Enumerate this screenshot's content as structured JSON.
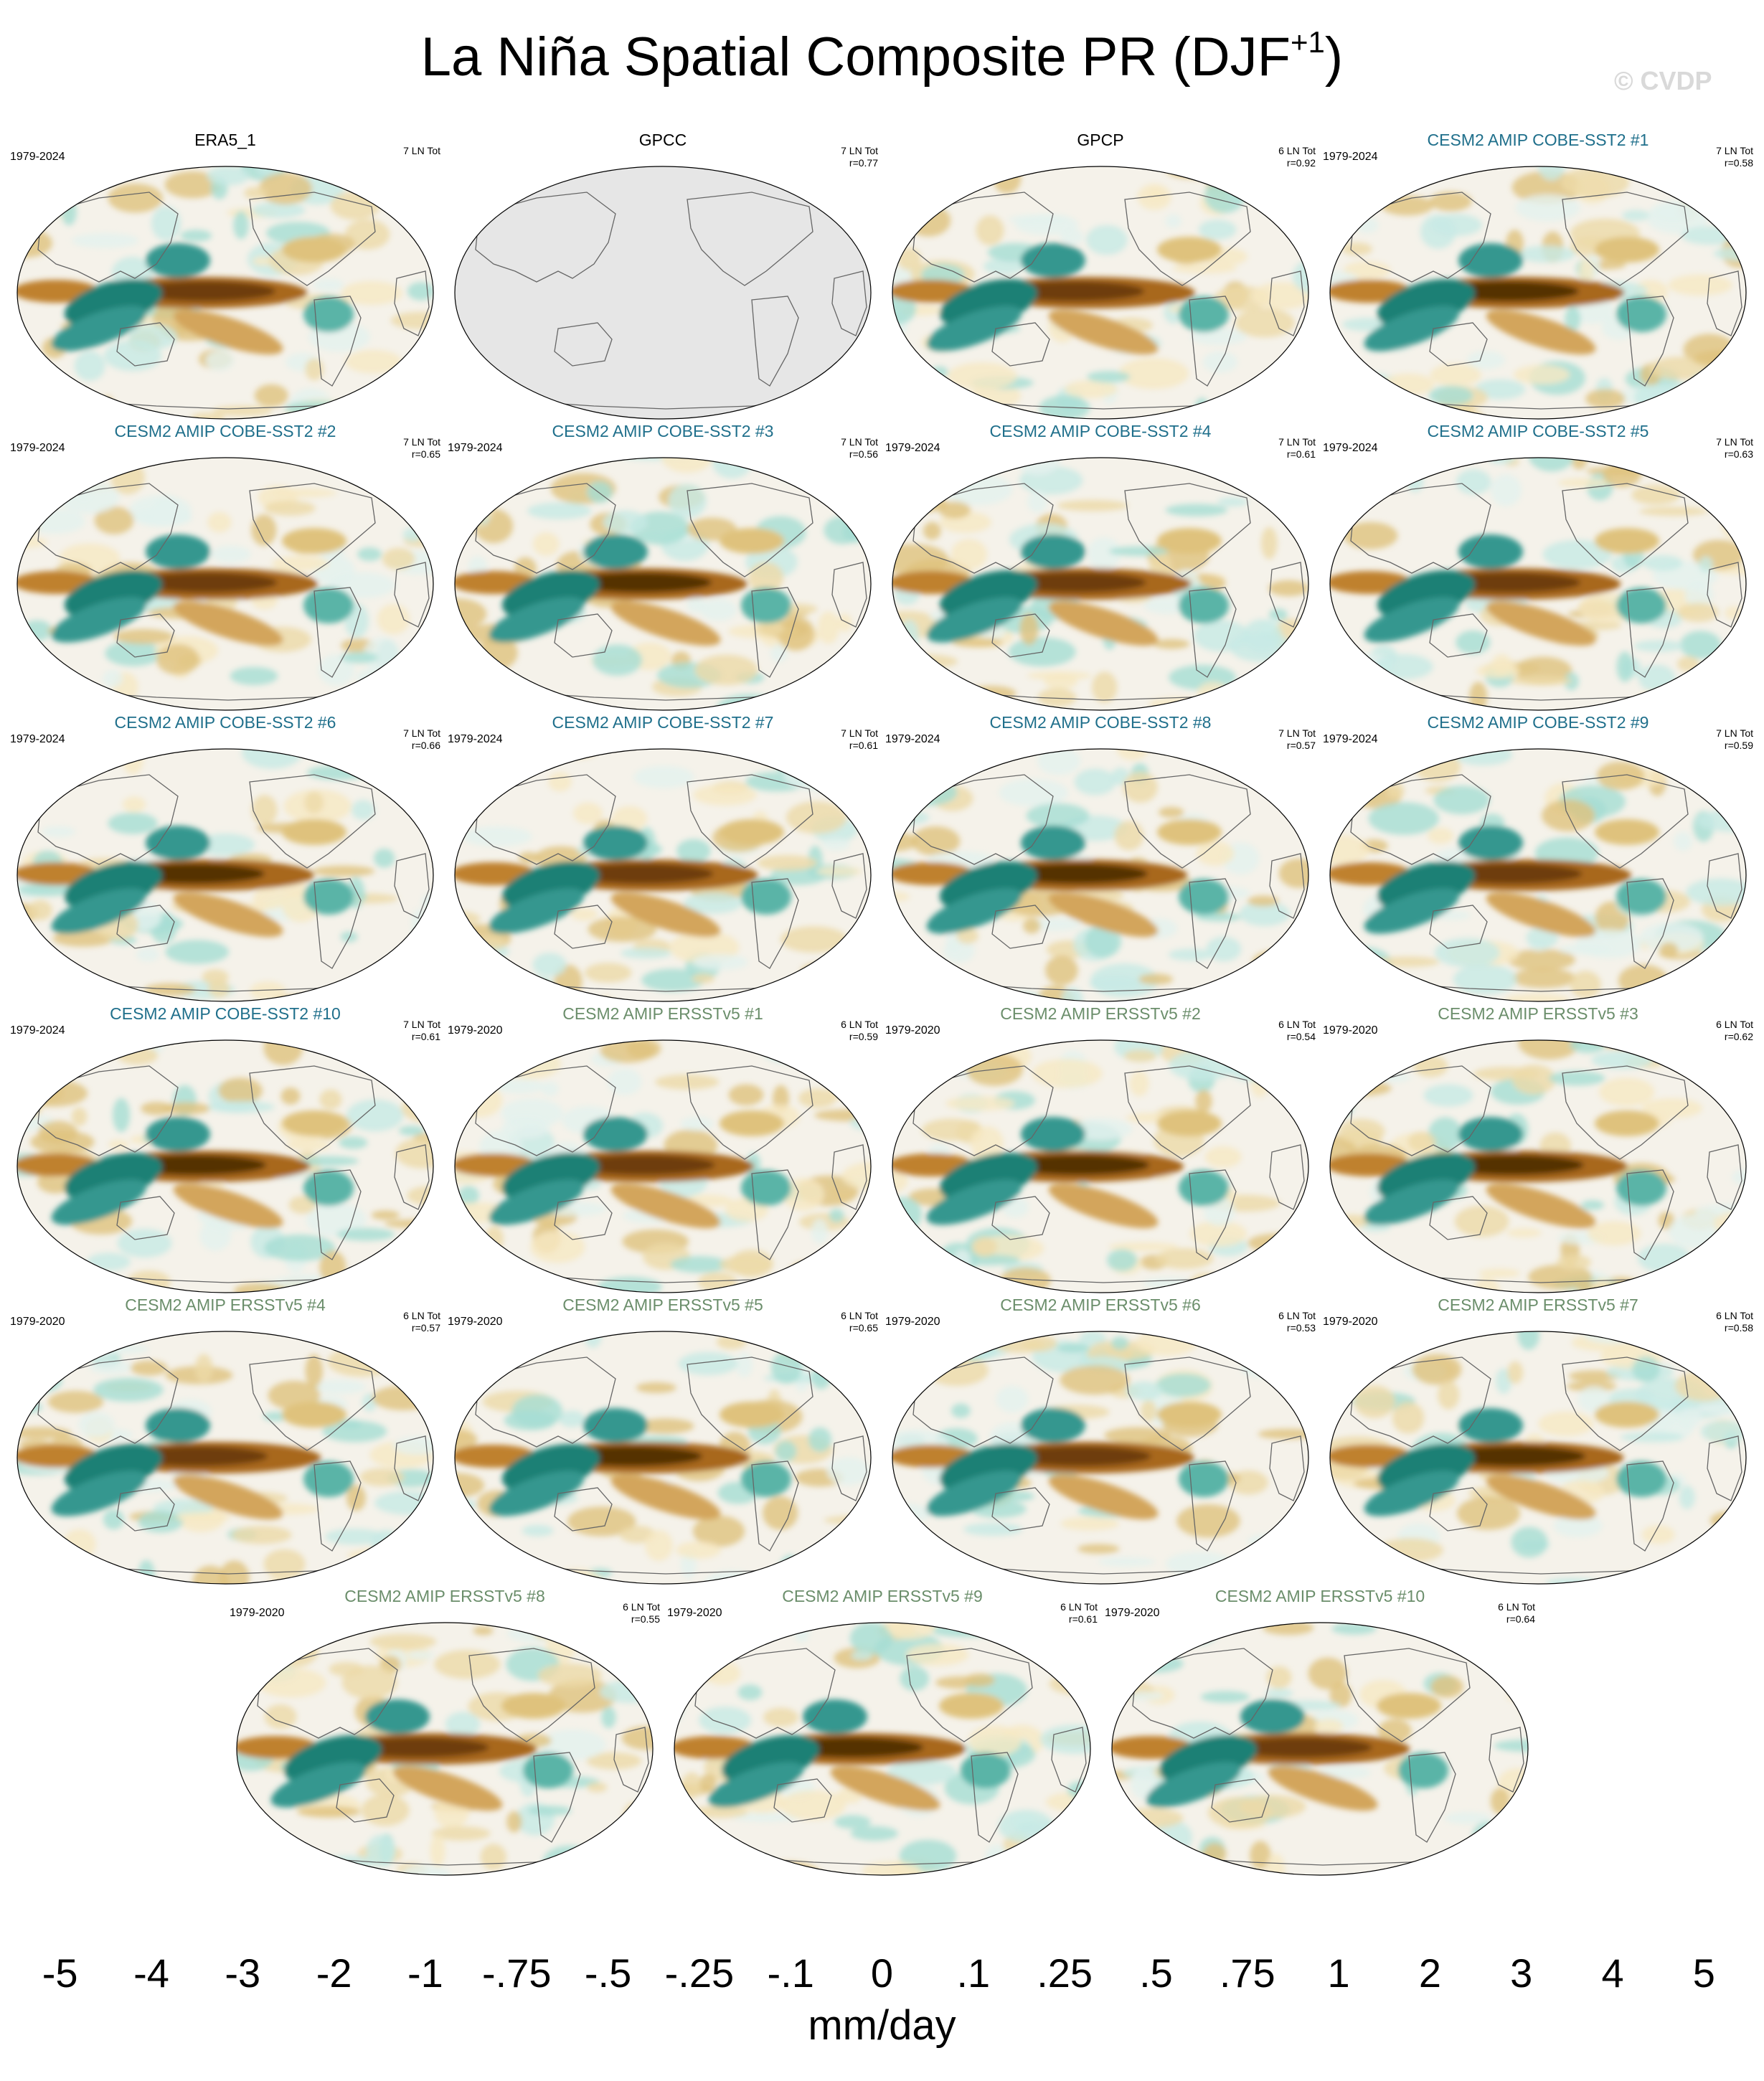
{
  "figure": {
    "title_main": "La Niña Spatial Composite PR (DJF",
    "title_sup": "+1",
    "title_close": ")",
    "watermark": "© CVDP"
  },
  "panels": [
    {
      "title": "ERA5_1",
      "years": "1979-2024",
      "count": "7 LN Tot",
      "r": "",
      "color": "#000000",
      "variant": 0,
      "mask": false
    },
    {
      "title": "GPCC",
      "years": "",
      "count": "7 LN Tot",
      "r": "r=0.77",
      "color": "#000000",
      "variant": 1,
      "mask": true
    },
    {
      "title": "GPCP",
      "years": "",
      "count": "6 LN Tot",
      "r": "r=0.92",
      "color": "#000000",
      "variant": 2,
      "mask": false
    },
    {
      "title": "CESM2 AMIP COBE-SST2 #1",
      "years": "1979-2024",
      "count": "7 LN Tot",
      "r": "r=0.58",
      "color": "#1f6f8b",
      "variant": 3,
      "mask": false
    },
    {
      "title": "CESM2 AMIP COBE-SST2 #2",
      "years": "1979-2024",
      "count": "7 LN Tot",
      "r": "r=0.65",
      "color": "#1f6f8b",
      "variant": 4,
      "mask": false
    },
    {
      "title": "CESM2 AMIP COBE-SST2 #3",
      "years": "1979-2024",
      "count": "7 LN Tot",
      "r": "r=0.56",
      "color": "#1f6f8b",
      "variant": 5,
      "mask": false
    },
    {
      "title": "CESM2 AMIP COBE-SST2 #4",
      "years": "1979-2024",
      "count": "7 LN Tot",
      "r": "r=0.61",
      "color": "#1f6f8b",
      "variant": 6,
      "mask": false
    },
    {
      "title": "CESM2 AMIP COBE-SST2 #5",
      "years": "1979-2024",
      "count": "7 LN Tot",
      "r": "r=0.63",
      "color": "#1f6f8b",
      "variant": 7,
      "mask": false
    },
    {
      "title": "CESM2 AMIP COBE-SST2 #6",
      "years": "1979-2024",
      "count": "7 LN Tot",
      "r": "r=0.66",
      "color": "#1f6f8b",
      "variant": 8,
      "mask": false
    },
    {
      "title": "CESM2 AMIP COBE-SST2 #7",
      "years": "1979-2024",
      "count": "7 LN Tot",
      "r": "r=0.61",
      "color": "#1f6f8b",
      "variant": 9,
      "mask": false
    },
    {
      "title": "CESM2 AMIP COBE-SST2 #8",
      "years": "1979-2024",
      "count": "7 LN Tot",
      "r": "r=0.57",
      "color": "#1f6f8b",
      "variant": 10,
      "mask": false
    },
    {
      "title": "CESM2 AMIP COBE-SST2 #9",
      "years": "1979-2024",
      "count": "7 LN Tot",
      "r": "r=0.59",
      "color": "#1f6f8b",
      "variant": 11,
      "mask": false
    },
    {
      "title": "CESM2 AMIP COBE-SST2 #10",
      "years": "1979-2024",
      "count": "7 LN Tot",
      "r": "r=0.61",
      "color": "#1f6f8b",
      "variant": 12,
      "mask": false
    },
    {
      "title": "CESM2 AMIP ERSSTv5 #1",
      "years": "1979-2020",
      "count": "6 LN Tot",
      "r": "r=0.59",
      "color": "#6b8e6b",
      "variant": 13,
      "mask": false
    },
    {
      "title": "CESM2 AMIP ERSSTv5 #2",
      "years": "1979-2020",
      "count": "6 LN Tot",
      "r": "r=0.54",
      "color": "#6b8e6b",
      "variant": 14,
      "mask": false
    },
    {
      "title": "CESM2 AMIP ERSSTv5 #3",
      "years": "1979-2020",
      "count": "6 LN Tot",
      "r": "r=0.62",
      "color": "#6b8e6b",
      "variant": 15,
      "mask": false
    },
    {
      "title": "CESM2 AMIP ERSSTv5 #4",
      "years": "1979-2020",
      "count": "6 LN Tot",
      "r": "r=0.57",
      "color": "#6b8e6b",
      "variant": 16,
      "mask": false
    },
    {
      "title": "CESM2 AMIP ERSSTv5 #5",
      "years": "1979-2020",
      "count": "6 LN Tot",
      "r": "r=0.65",
      "color": "#6b8e6b",
      "variant": 17,
      "mask": false
    },
    {
      "title": "CESM2 AMIP ERSSTv5 #6",
      "years": "1979-2020",
      "count": "6 LN Tot",
      "r": "r=0.53",
      "color": "#6b8e6b",
      "variant": 18,
      "mask": false
    },
    {
      "title": "CESM2 AMIP ERSSTv5 #7",
      "years": "1979-2020",
      "count": "6 LN Tot",
      "r": "r=0.58",
      "color": "#6b8e6b",
      "variant": 19,
      "mask": false
    },
    {
      "title": "CESM2 AMIP ERSSTv5 #8",
      "years": "1979-2020",
      "count": "6 LN Tot",
      "r": "r=0.55",
      "color": "#6b8e6b",
      "variant": 20,
      "mask": false
    },
    {
      "title": "CESM2 AMIP ERSSTv5 #9",
      "years": "1979-2020",
      "count": "6 LN Tot",
      "r": "r=0.61",
      "color": "#6b8e6b",
      "variant": 21,
      "mask": false
    },
    {
      "title": "CESM2 AMIP ERSSTv5 #10",
      "years": "1979-2020",
      "count": "6 LN Tot",
      "r": "r=0.64",
      "color": "#6b8e6b",
      "variant": 22,
      "mask": false
    }
  ],
  "colorbar": {
    "labels": [
      "-5",
      "-4",
      "-3",
      "-2",
      "-1",
      "-.75",
      "-.5",
      "-.25",
      "-.1",
      "0",
      ".1",
      ".25",
      ".5",
      ".75",
      "1",
      "2",
      "3",
      "4",
      "5"
    ],
    "colors": [
      "#543005",
      "#6e3e0a",
      "#8c510a",
      "#a8681c",
      "#bf812d",
      "#d3a55c",
      "#dfc27d",
      "#ecd9a8",
      "#f6e8c3",
      "#f5f2ea",
      "#e3f1ed",
      "#c7eae5",
      "#a5ddd3",
      "#80cdc1",
      "#5ab4a7",
      "#35978f",
      "#1b8074",
      "#01665e",
      "#003c30"
    ],
    "units": "mm/day"
  }
}
